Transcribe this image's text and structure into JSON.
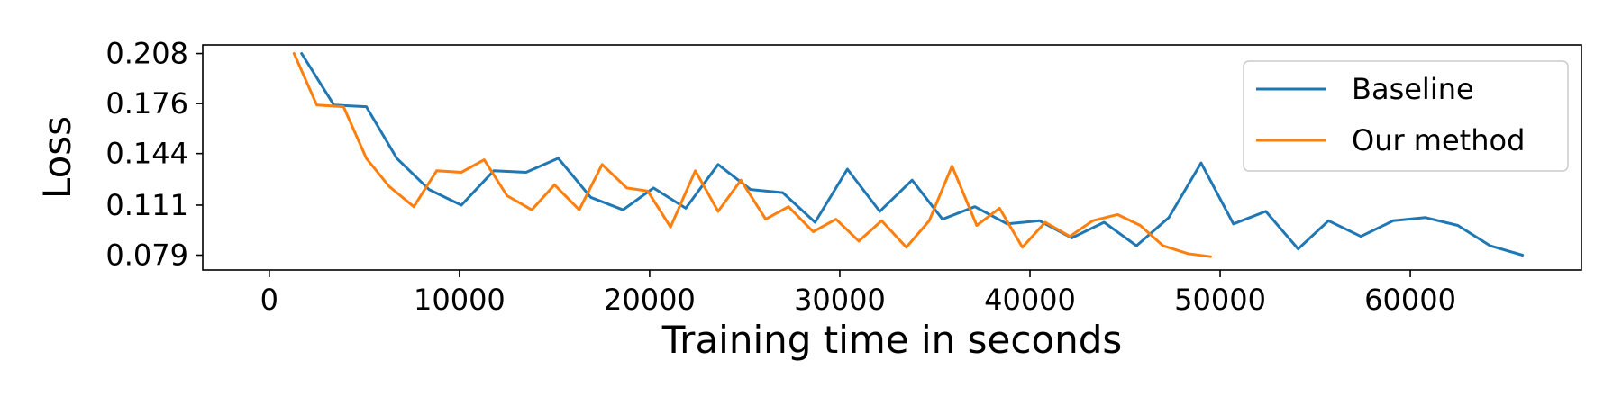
{
  "chart_data": {
    "type": "line",
    "title": "",
    "xlabel": "Training time in seconds",
    "ylabel": "Loss",
    "xlim": [
      -3500,
      69000
    ],
    "ylim": [
      0.0695,
      0.2135
    ],
    "xticks": [
      0,
      10000,
      20000,
      30000,
      40000,
      50000,
      60000
    ],
    "xtick_labels": [
      "0",
      "10000",
      "20000",
      "30000",
      "40000",
      "50000",
      "60000"
    ],
    "yticks": [
      0.079,
      0.111,
      0.144,
      0.176,
      0.208
    ],
    "ytick_labels": [
      "0.079",
      "0.111",
      "0.144",
      "0.176",
      "0.208"
    ],
    "grid": false,
    "legend_position": "top-right",
    "series": [
      {
        "name": "Baseline",
        "color": "#1f77b4",
        "x": [
          1700,
          3400,
          5100,
          6700,
          8400,
          10100,
          11800,
          13500,
          15200,
          16900,
          18600,
          20200,
          21900,
          23600,
          25300,
          27000,
          28700,
          30400,
          32100,
          33800,
          35400,
          37100,
          38800,
          40500,
          42200,
          43900,
          45600,
          47300,
          49000,
          50700,
          52400,
          54100,
          55700,
          57400,
          59100,
          60800,
          62500,
          64200,
          65900
        ],
        "values": [
          0.208,
          0.175,
          0.174,
          0.141,
          0.121,
          0.111,
          0.133,
          0.132,
          0.141,
          0.116,
          0.108,
          0.122,
          0.109,
          0.137,
          0.121,
          0.119,
          0.1,
          0.134,
          0.107,
          0.127,
          0.102,
          0.11,
          0.099,
          0.101,
          0.09,
          0.1,
          0.085,
          0.103,
          0.138,
          0.099,
          0.107,
          0.083,
          0.101,
          0.091,
          0.101,
          0.103,
          0.098,
          0.085,
          0.079
        ]
      },
      {
        "name": "Our method",
        "color": "#ff7f0e",
        "x": [
          1300,
          2500,
          3900,
          5100,
          6300,
          7600,
          8800,
          10100,
          11300,
          12500,
          13800,
          15000,
          16300,
          17500,
          18800,
          19900,
          21100,
          22400,
          23600,
          24800,
          26100,
          27300,
          28600,
          29800,
          31000,
          32200,
          33500,
          34700,
          35900,
          37200,
          38400,
          39600,
          40800,
          42100,
          43300,
          44600,
          45800,
          47000,
          48300,
          49500
        ],
        "values": [
          0.208,
          0.175,
          0.174,
          0.141,
          0.123,
          0.11,
          0.133,
          0.132,
          0.14,
          0.117,
          0.108,
          0.124,
          0.108,
          0.137,
          0.122,
          0.12,
          0.097,
          0.133,
          0.107,
          0.127,
          0.102,
          0.11,
          0.094,
          0.102,
          0.088,
          0.101,
          0.084,
          0.101,
          0.136,
          0.098,
          0.109,
          0.084,
          0.1,
          0.091,
          0.101,
          0.105,
          0.098,
          0.085,
          0.08,
          0.078
        ]
      }
    ]
  }
}
